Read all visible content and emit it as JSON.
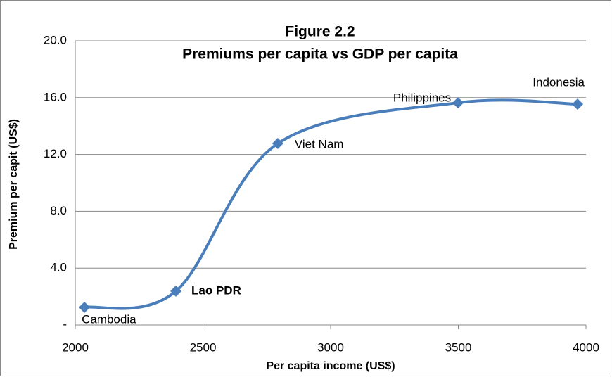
{
  "chart_data": {
    "type": "line",
    "title": [
      "Figure 2.2",
      "Premiums per capita vs GDP per capita"
    ],
    "x_label": "Per capita income (US$)",
    "y_label": "Premium per capit (US$)",
    "series": [
      {
        "color": "#4a7ebb",
        "smooth": true,
        "x": [
          2036,
          2394,
          2793,
          3499,
          3967
        ],
        "values": [
          1.24,
          2.38,
          12.77,
          15.64,
          15.54
        ],
        "labels": [
          "Cambodia",
          "Lao PDR",
          "Viet Nam",
          "Philippines",
          "Indonesia"
        ]
      }
    ],
    "xlim": [
      2000,
      4000
    ],
    "xticks": [
      2000,
      2500,
      3000,
      3500,
      4000
    ],
    "ylim": [
      0,
      20
    ],
    "yticks": [
      {
        "value": 0,
        "label": "-"
      },
      {
        "value": 4,
        "label": "4.0"
      },
      {
        "value": 8,
        "label": "8.0"
      },
      {
        "value": 12,
        "label": "12.0"
      },
      {
        "value": 16,
        "label": "16.0"
      },
      {
        "value": 20,
        "label": "20.0"
      }
    ],
    "grid": true
  }
}
